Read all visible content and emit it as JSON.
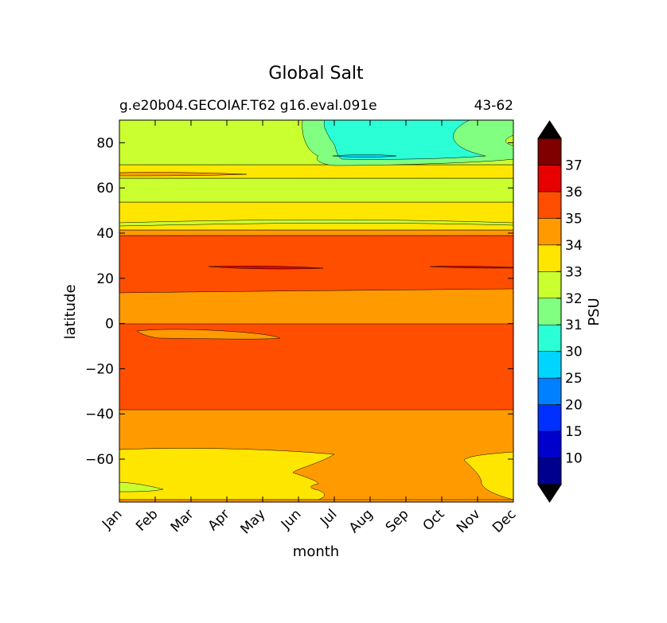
{
  "chart_data": {
    "type": "heatmap",
    "title": "Global Salt",
    "subtitle_left": "g.e20b04.GECOIAF.T62 g16.eval.091e",
    "subtitle_right": "43-62",
    "xlabel": "month",
    "ylabel": "latitude",
    "x_tick_labels": [
      "Jan",
      "Feb",
      "Mar",
      "Apr",
      "May",
      "Jun",
      "Jul",
      "Aug",
      "Sep",
      "Oct",
      "Nov",
      "Dec"
    ],
    "xlim": [
      0,
      11
    ],
    "ylim": [
      -79,
      90
    ],
    "y_ticks": [
      80,
      60,
      40,
      20,
      0,
      -20,
      -40,
      -60
    ],
    "y_tick_labels": [
      "80",
      "60",
      "40",
      "20",
      "0",
      "−20",
      "−40",
      "−60"
    ],
    "colorbar": {
      "label": "PSU",
      "levels": [
        5,
        10,
        15,
        20,
        25,
        30,
        31,
        32,
        33,
        34,
        35,
        36,
        37,
        38
      ],
      "tick_labels": [
        "10",
        "15",
        "20",
        "25",
        "30",
        "31",
        "32",
        "33",
        "34",
        "35",
        "36",
        "37"
      ],
      "colors": [
        "#00008f",
        "#0000cc",
        "#0030ff",
        "#0080ff",
        "#00d5ff",
        "#2affd5",
        "#80ff80",
        "#caff30",
        "#ffe600",
        "#ff9a00",
        "#ff4e00",
        "#e60000",
        "#800000"
      ],
      "under_color": "#000000",
      "over_color": "#000000",
      "extend": "both"
    },
    "bands": [
      {
        "lat": [
          -79,
          -77
        ],
        "value": 34.5
      },
      {
        "lat": [
          -77,
          -70
        ],
        "value": 33.5,
        "months": [
          0,
          2.5
        ]
      },
      {
        "lat": [
          -77,
          -56
        ],
        "value": 33.5
      },
      {
        "lat": [
          -56,
          -38
        ],
        "value": 34.5
      },
      {
        "lat": [
          -38,
          -1
        ],
        "value": 35.5
      },
      {
        "lat": [
          -1,
          14
        ],
        "value": 34.5
      },
      {
        "lat": [
          14,
          39
        ],
        "value": 35.5
      },
      {
        "lat": [
          39,
          41
        ],
        "value": 34.5
      },
      {
        "lat": [
          41,
          45
        ],
        "value": 33.5
      },
      {
        "lat": [
          45,
          54
        ],
        "value": 33.5
      },
      {
        "lat": [
          54,
          64
        ],
        "value": 32.5
      },
      {
        "lat": [
          64,
          69
        ],
        "value": 33.5
      },
      {
        "lat": [
          69,
          72
        ],
        "value": 32.5
      },
      {
        "lat": [
          72,
          90
        ],
        "value": 32.5
      }
    ],
    "low_salinity_patch": {
      "lat": [
        68,
        90
      ],
      "months": [
        5.5,
        10.5
      ],
      "value": 31.5,
      "core_value": 30.5,
      "min_value": 29
    }
  }
}
